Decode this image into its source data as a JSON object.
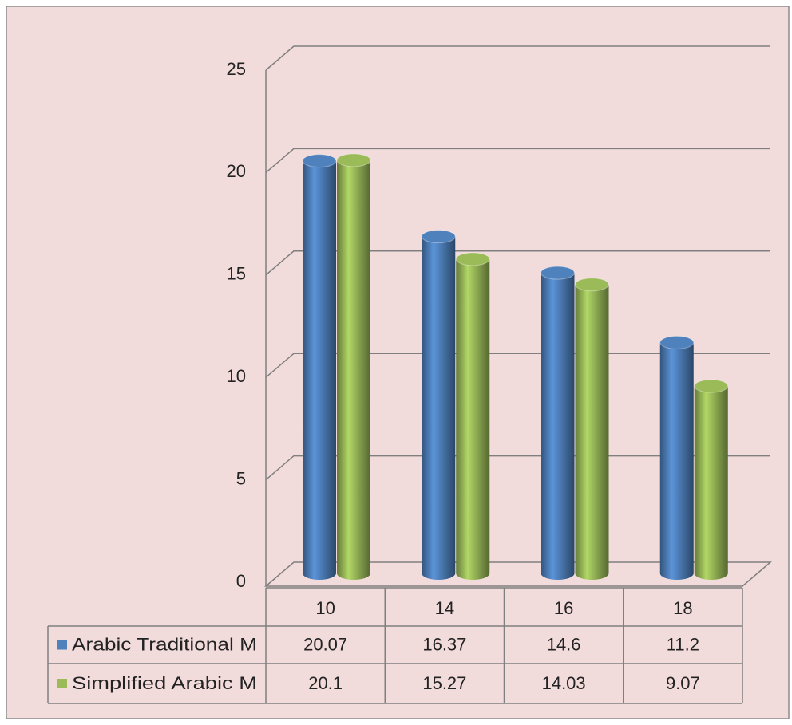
{
  "chart_data": {
    "type": "bar3d",
    "categories": [
      "10",
      "14",
      "16",
      "18"
    ],
    "series": [
      {
        "name": "Arabic Traditional M",
        "color": "#4f81bd",
        "values": [
          20.07,
          16.37,
          14.6,
          11.2
        ]
      },
      {
        "name": "Simplified Arabic M",
        "color": "#9bbb59",
        "values": [
          20.1,
          15.27,
          14.03,
          9.07
        ]
      }
    ],
    "ylim": [
      0,
      25
    ],
    "yticks": [
      0,
      5,
      10,
      15,
      20,
      25
    ],
    "grid": true,
    "data_table": true
  }
}
